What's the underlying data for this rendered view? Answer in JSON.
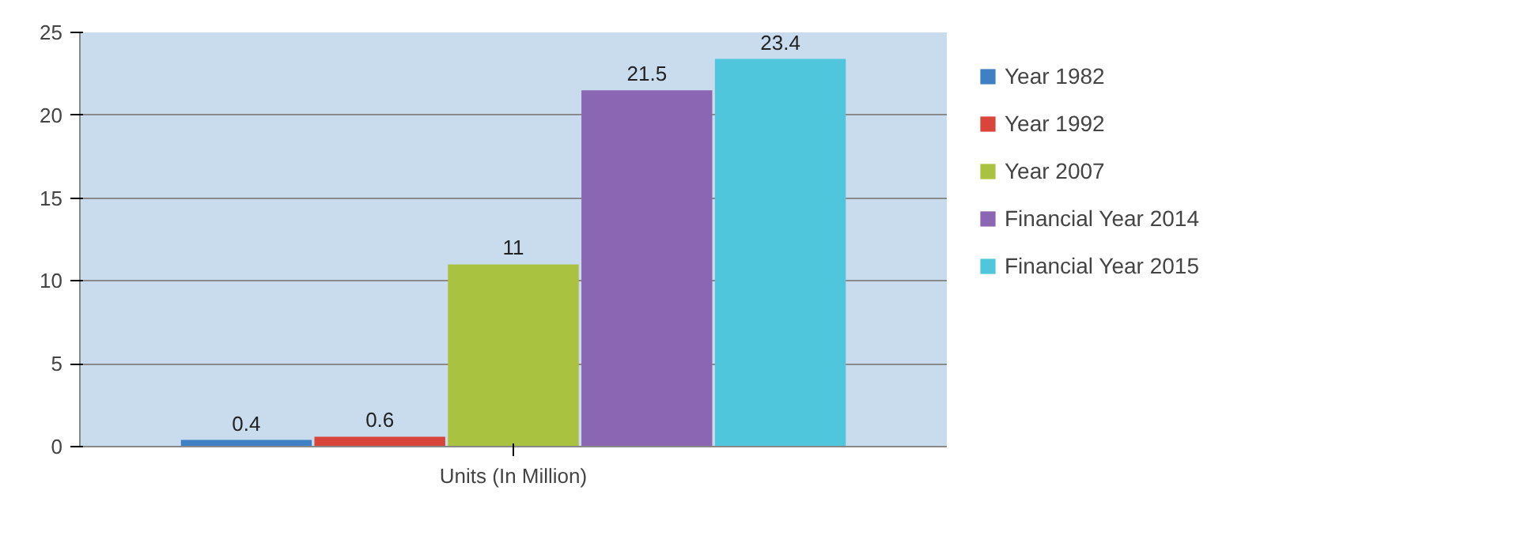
{
  "chart_data": {
    "type": "bar",
    "categories": [
      "Units (In Million)"
    ],
    "series": [
      {
        "name": "Year 1982",
        "color": "#3f7fc4",
        "values": [
          0.4
        ]
      },
      {
        "name": "Year 1992",
        "color": "#d9453a",
        "values": [
          0.6
        ]
      },
      {
        "name": "Year 2007",
        "color": "#a9c23f",
        "values": [
          11
        ]
      },
      {
        "name": "Financial Year 2014",
        "color": "#8a66b3",
        "values": [
          21.5
        ]
      },
      {
        "name": "Financial Year 2015",
        "color": "#4fc6dc",
        "values": [
          23.4
        ]
      }
    ],
    "ylim": [
      0,
      25
    ],
    "yticks": [
      0,
      5,
      10,
      15,
      20,
      25
    ],
    "grid": "y",
    "legend": "right",
    "data_labels": true
  }
}
